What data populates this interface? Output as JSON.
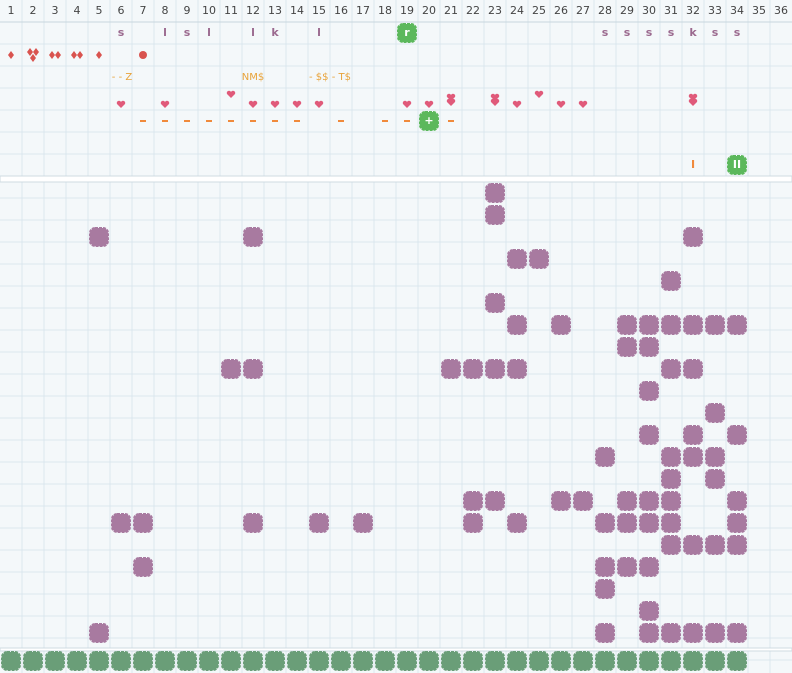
{
  "column_headers": [
    1,
    2,
    3,
    4,
    5,
    6,
    7,
    8,
    9,
    10,
    11,
    12,
    13,
    14,
    15,
    16,
    17,
    18,
    19,
    20,
    21,
    22,
    23,
    24,
    25,
    26,
    27,
    28,
    29,
    30,
    31,
    32,
    33,
    34,
    35,
    36
  ],
  "clue_rows": {
    "letters": [
      "s",
      "l",
      "s",
      "l",
      "l",
      "k",
      "l",
      "r",
      "s",
      "s",
      "s",
      "s",
      "k",
      "s",
      "s"
    ],
    "symbols": [
      "- - Z",
      "NM$",
      "- $$ - T$"
    ],
    "cross": [
      "+"
    ],
    "bars": [
      "I",
      "II"
    ]
  }
}
